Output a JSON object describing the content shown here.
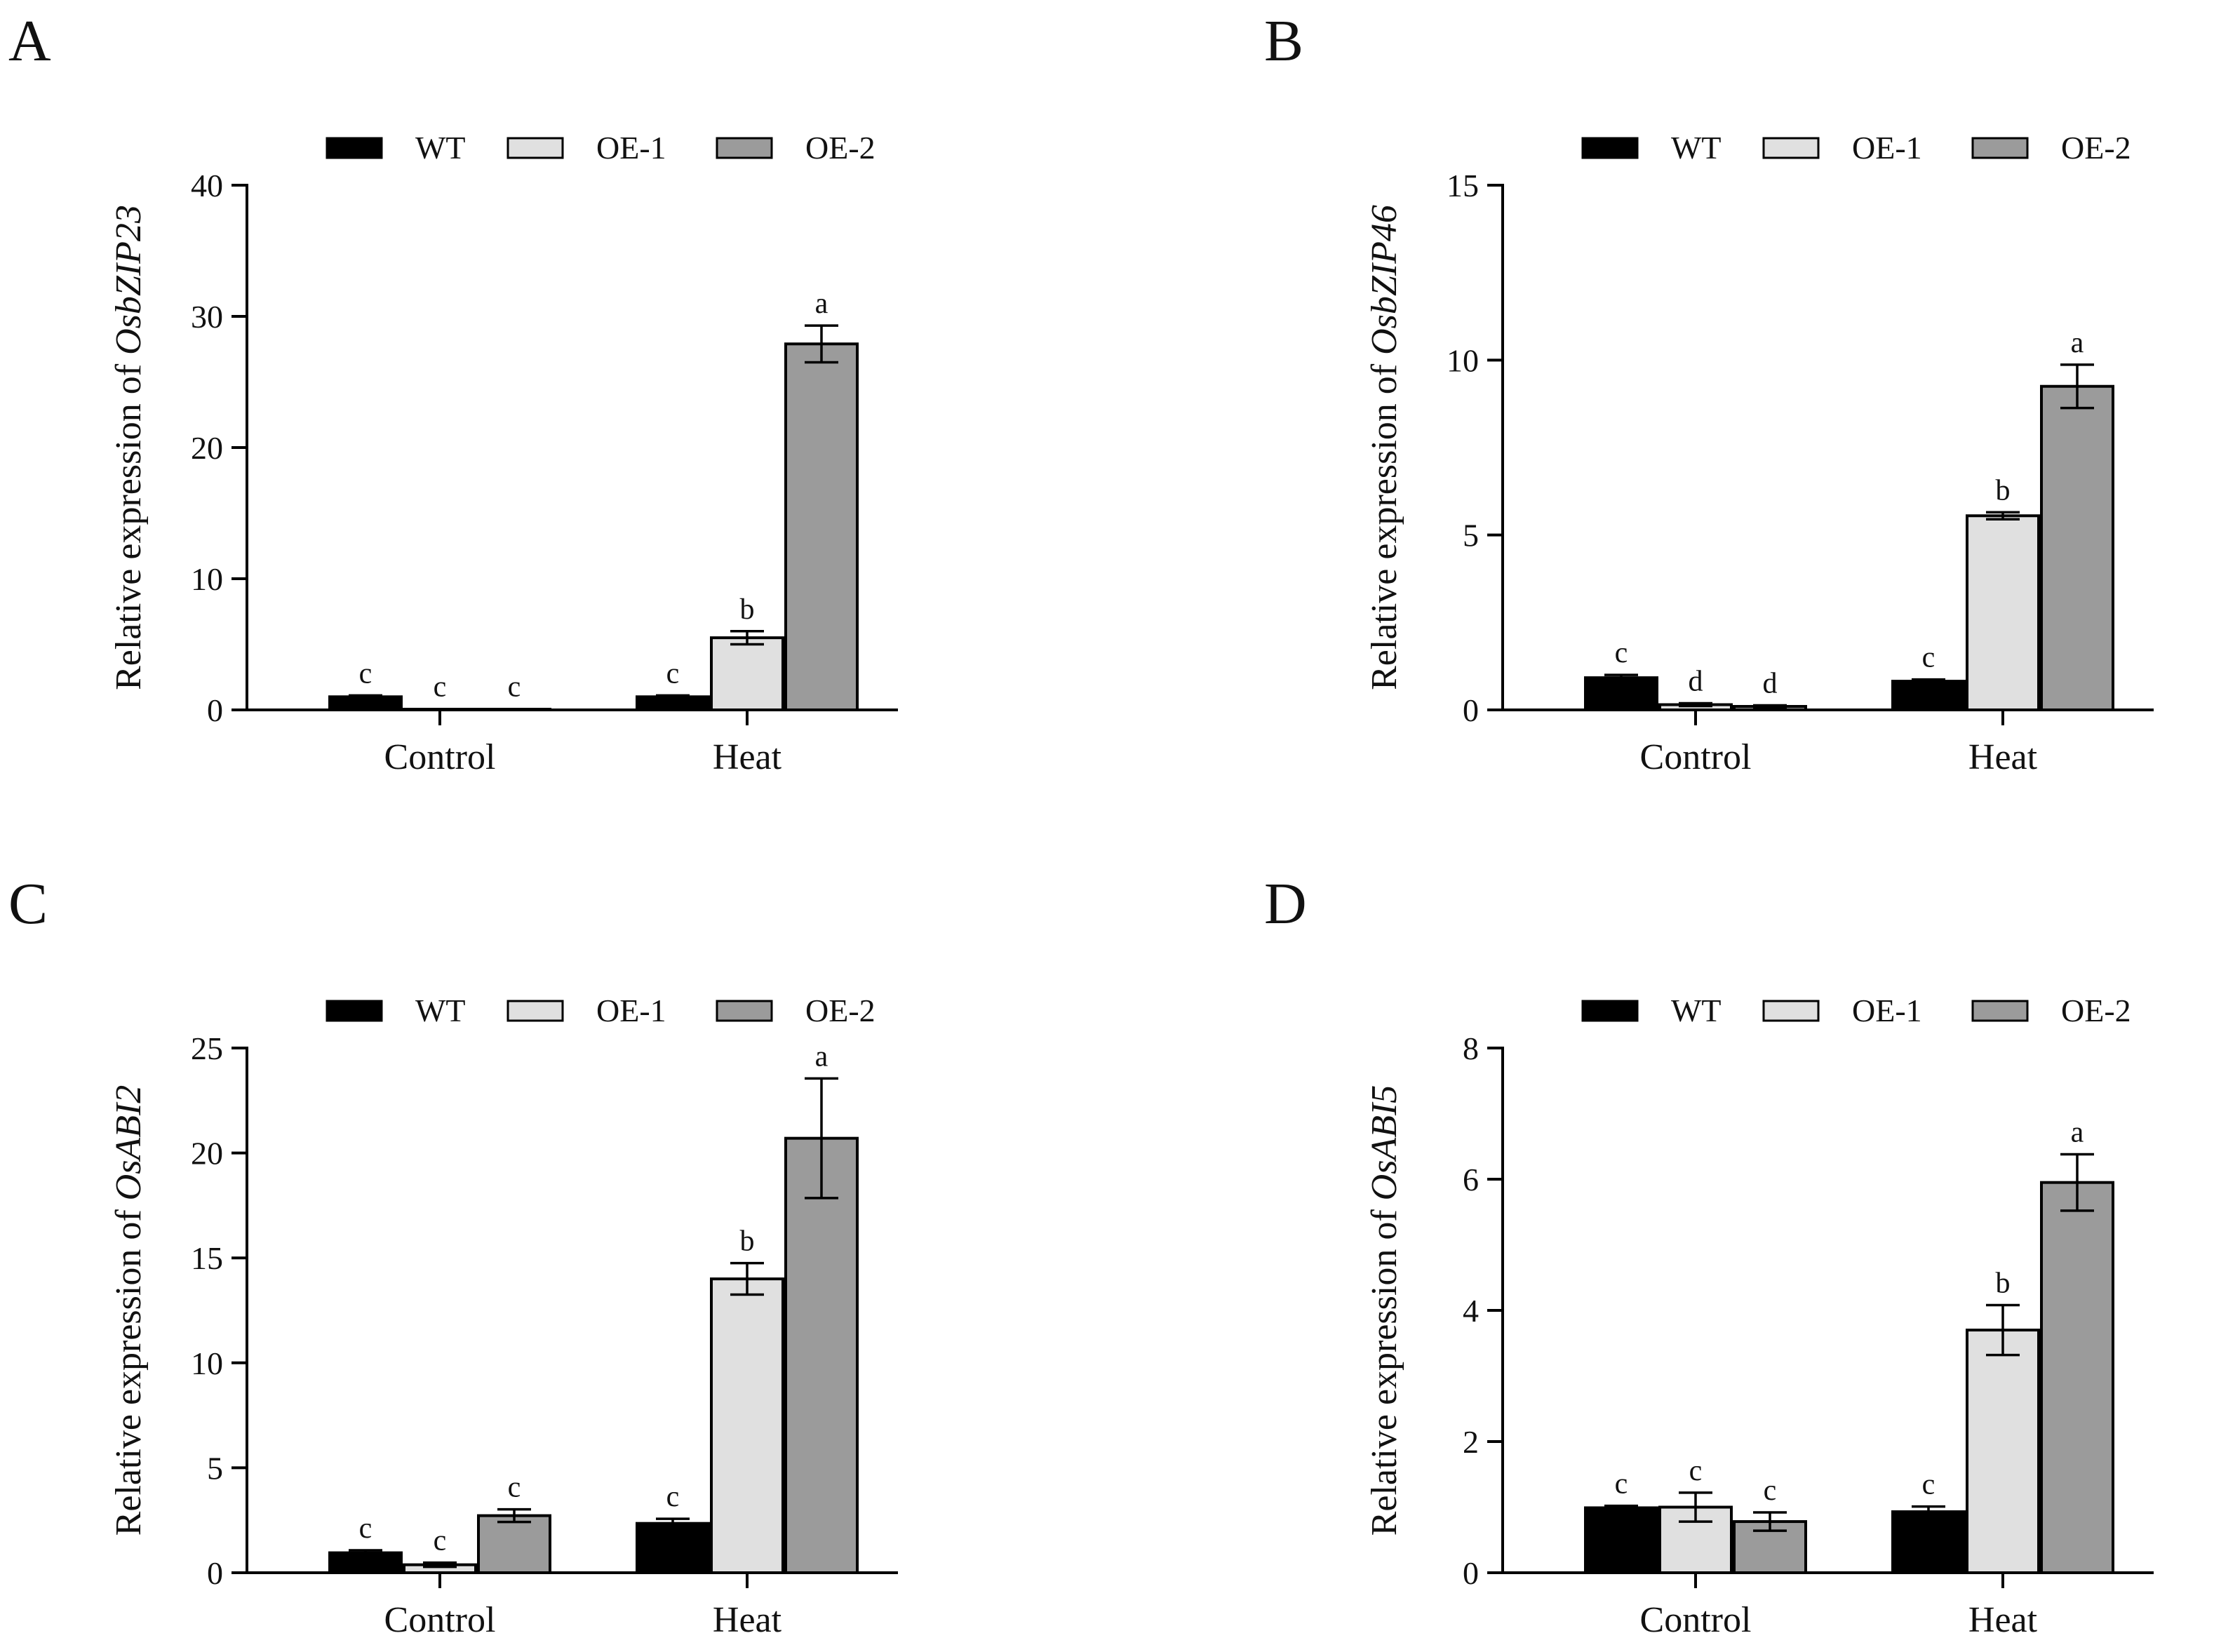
{
  "chart_data": [
    {
      "panel": "A",
      "type": "bar",
      "ylabel_prefix": "Relative expression of ",
      "ylabel_gene": "OsbZIP23",
      "ylim": [
        0,
        40
      ],
      "yticks": [
        "0",
        "10",
        "20",
        "30",
        "40"
      ],
      "categories": [
        "Control",
        "Heat"
      ],
      "legend": [
        "WT",
        "OE-1",
        "OE-2"
      ],
      "series": [
        {
          "name": "WT",
          "color": "#000000",
          "values": [
            1.0,
            1.0
          ],
          "errors": [
            0.1,
            0.1
          ],
          "labels": [
            "c",
            "c"
          ]
        },
        {
          "name": "OE-1",
          "color": "#e0e0e0",
          "values": [
            0.05,
            5.5
          ],
          "errors": [
            0.02,
            0.5
          ],
          "labels": [
            "c",
            "b"
          ]
        },
        {
          "name": "OE-2",
          "color": "#9b9b9b",
          "values": [
            0.05,
            27.9
          ],
          "errors": [
            0.02,
            1.4
          ],
          "labels": [
            "c",
            "a"
          ]
        }
      ]
    },
    {
      "panel": "B",
      "type": "bar",
      "ylabel_prefix": "Relative expression of ",
      "ylabel_gene": "OsbZIP46",
      "ylim": [
        0,
        15
      ],
      "yticks": [
        "0",
        "5",
        "10",
        "15"
      ],
      "categories": [
        "Control",
        "Heat"
      ],
      "legend": [
        "WT",
        "OE-1",
        "OE-2"
      ],
      "series": [
        {
          "name": "WT",
          "color": "#000000",
          "values": [
            0.92,
            0.82
          ],
          "errors": [
            0.08,
            0.05
          ],
          "labels": [
            "c",
            "c"
          ]
        },
        {
          "name": "OE-1",
          "color": "#e0e0e0",
          "values": [
            0.15,
            5.55
          ],
          "errors": [
            0.04,
            0.1
          ],
          "labels": [
            "d",
            "b"
          ]
        },
        {
          "name": "OE-2",
          "color": "#9b9b9b",
          "values": [
            0.1,
            9.25
          ],
          "errors": [
            0.03,
            0.62
          ],
          "labels": [
            "d",
            "a"
          ]
        }
      ]
    },
    {
      "panel": "C",
      "type": "bar",
      "ylabel_prefix": "Relative expression of ",
      "ylabel_gene": "OsABI2",
      "ylim": [
        0,
        25
      ],
      "yticks": [
        "0",
        "5",
        "10",
        "15",
        "20",
        "25"
      ],
      "categories": [
        "Control",
        "Heat"
      ],
      "legend": [
        "WT",
        "OE-1",
        "OE-2"
      ],
      "series": [
        {
          "name": "WT",
          "color": "#000000",
          "values": [
            0.95,
            2.35
          ],
          "errors": [
            0.12,
            0.22
          ],
          "labels": [
            "c",
            "c"
          ]
        },
        {
          "name": "OE-1",
          "color": "#e0e0e0",
          "values": [
            0.38,
            14.0
          ],
          "errors": [
            0.1,
            0.75
          ],
          "labels": [
            "c",
            "b"
          ]
        },
        {
          "name": "OE-2",
          "color": "#9b9b9b",
          "values": [
            2.72,
            20.7
          ],
          "errors": [
            0.3,
            2.85
          ],
          "labels": [
            "c",
            "a"
          ]
        }
      ]
    },
    {
      "panel": "D",
      "type": "bar",
      "ylabel_prefix": "Relative expression of ",
      "ylabel_gene": "OsABI5",
      "ylim": [
        0,
        8
      ],
      "yticks": [
        "0",
        "2",
        "4",
        "6",
        "8"
      ],
      "categories": [
        "Control",
        "Heat"
      ],
      "legend": [
        "WT",
        "OE-1",
        "OE-2"
      ],
      "series": [
        {
          "name": "WT",
          "color": "#000000",
          "values": [
            0.99,
            0.93
          ],
          "errors": [
            0.03,
            0.08
          ],
          "labels": [
            "c",
            "c"
          ]
        },
        {
          "name": "OE-1",
          "color": "#e0e0e0",
          "values": [
            1.0,
            3.7
          ],
          "errors": [
            0.22,
            0.38
          ],
          "labels": [
            "c",
            "b"
          ]
        },
        {
          "name": "OE-2",
          "color": "#9b9b9b",
          "values": [
            0.78,
            5.95
          ],
          "errors": [
            0.14,
            0.43
          ],
          "labels": [
            "c",
            "a"
          ]
        }
      ]
    }
  ]
}
